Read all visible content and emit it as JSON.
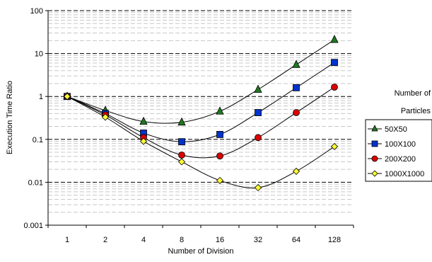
{
  "chart_data": {
    "type": "line",
    "title": "",
    "xlabel": "Number of Division",
    "ylabel": "Execution Time Ratio",
    "x_scale": "log2",
    "y_scale": "log10",
    "x": [
      1,
      2,
      4,
      8,
      16,
      32,
      64,
      128
    ],
    "x_tick_labels": [
      "1",
      "2",
      "4",
      "8",
      "16",
      "32",
      "64",
      "128"
    ],
    "y_tick_labels": [
      "0.001",
      "0.01",
      "0.1",
      "1",
      "10",
      "100"
    ],
    "ylim": [
      0.001,
      100
    ],
    "grid": "horizontal, major dashed dark, minor dashed light",
    "legend_title": "Number of\nParticles",
    "legend_position": "right",
    "series": [
      {
        "name": "50X50",
        "marker": "triangle",
        "color": "#1f7a1f",
        "values": [
          1.0,
          0.47,
          0.26,
          0.25,
          0.45,
          1.45,
          5.5,
          21
        ]
      },
      {
        "name": "100X100",
        "marker": "square",
        "color": "#0033cc",
        "values": [
          1.0,
          0.4,
          0.14,
          0.088,
          0.13,
          0.42,
          1.6,
          6.2
        ]
      },
      {
        "name": "200X200",
        "marker": "circle",
        "color": "#dd0000",
        "values": [
          1.0,
          0.37,
          0.11,
          0.043,
          0.041,
          0.11,
          0.42,
          1.65
        ]
      },
      {
        "name": "1000X1000",
        "marker": "diamond",
        "color": "#ffff33",
        "values": [
          1.0,
          0.33,
          0.09,
          0.03,
          0.011,
          0.0075,
          0.018,
          0.068
        ]
      }
    ]
  }
}
